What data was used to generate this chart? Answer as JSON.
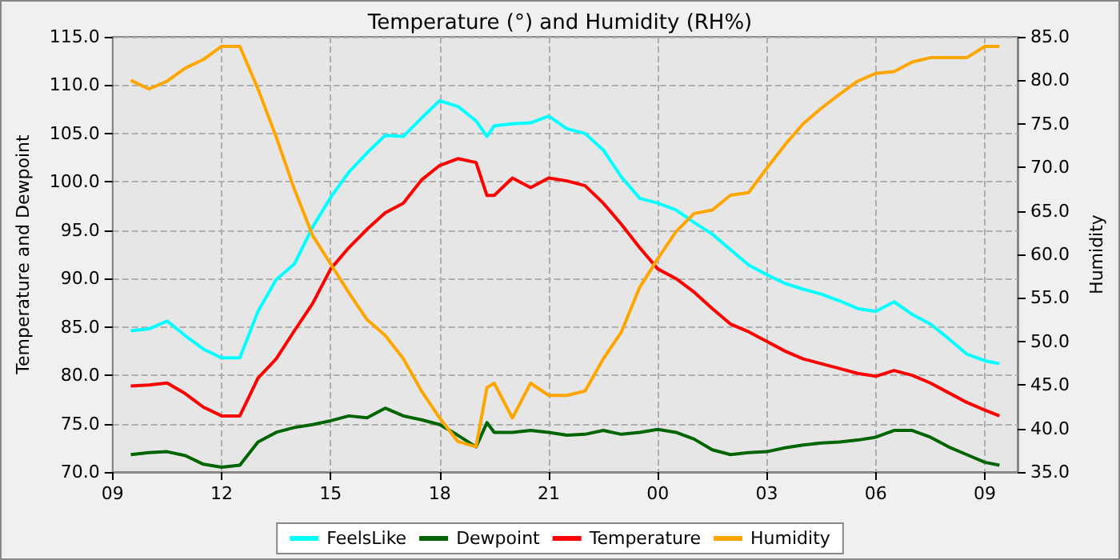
{
  "chart_data": {
    "type": "line",
    "title": "Temperature (°) and Humidity (RH%)",
    "ylabel": "Temperature and Dewpoint",
    "y2label": "Humidity",
    "xlim": [
      9,
      33.9
    ],
    "xticks": [
      {
        "value": 9,
        "label": "09"
      },
      {
        "value": 12,
        "label": "12"
      },
      {
        "value": 15,
        "label": "15"
      },
      {
        "value": 18,
        "label": "18"
      },
      {
        "value": 21,
        "label": "21"
      },
      {
        "value": 24,
        "label": "00"
      },
      {
        "value": 27,
        "label": "03"
      },
      {
        "value": 30,
        "label": "06"
      },
      {
        "value": 33,
        "label": "09"
      }
    ],
    "ylim": [
      70,
      115
    ],
    "yticks": [
      {
        "value": 70,
        "label": "70.0"
      },
      {
        "value": 75,
        "label": "75.0"
      },
      {
        "value": 80,
        "label": "80.0"
      },
      {
        "value": 85,
        "label": "85.0"
      },
      {
        "value": 90,
        "label": "90.0"
      },
      {
        "value": 95,
        "label": "95.0"
      },
      {
        "value": 100,
        "label": "100.0"
      },
      {
        "value": 105,
        "label": "105.0"
      },
      {
        "value": 110,
        "label": "110.0"
      },
      {
        "value": 115,
        "label": "115.0"
      }
    ],
    "y2lim": [
      35,
      85
    ],
    "y2ticks": [
      {
        "value": 35,
        "label": "35.0"
      },
      {
        "value": 40,
        "label": "40.0"
      },
      {
        "value": 45,
        "label": "45.0"
      },
      {
        "value": 50,
        "label": "50.0"
      },
      {
        "value": 55,
        "label": "55.0"
      },
      {
        "value": 60,
        "label": "60.0"
      },
      {
        "value": 65,
        "label": "65.0"
      },
      {
        "value": 70,
        "label": "70.0"
      },
      {
        "value": 75,
        "label": "75.0"
      },
      {
        "value": 80,
        "label": "80.0"
      },
      {
        "value": 85,
        "label": "85.0"
      }
    ],
    "x": [
      9.5,
      10,
      10.5,
      11,
      11.5,
      12,
      12.5,
      13,
      13.5,
      14,
      14.5,
      15,
      15.5,
      16,
      16.5,
      17,
      17.5,
      18,
      18.5,
      19,
      19.3,
      19.5,
      20,
      20.5,
      21,
      21.5,
      22,
      22.5,
      23,
      23.5,
      24,
      24.5,
      25,
      25.5,
      26,
      26.5,
      27,
      27.5,
      28,
      28.5,
      29,
      29.5,
      30,
      30.5,
      31,
      31.5,
      32,
      32.5,
      33,
      33.4
    ],
    "series": [
      {
        "name": "FeelsLike",
        "color": "#00ffff",
        "values": [
          84.6,
          84.8,
          85.6,
          84.1,
          82.7,
          81.8,
          81.8,
          86.6,
          89.9,
          91.5,
          95.3,
          98.4,
          101.0,
          103.0,
          104.8,
          104.7,
          106.6,
          108.4,
          107.8,
          106.3,
          104.7,
          105.8,
          106.0,
          106.1,
          106.8,
          105.5,
          105.0,
          103.3,
          100.5,
          98.3,
          97.8,
          97.1,
          95.8,
          94.6,
          93.0,
          91.4,
          90.4,
          89.5,
          88.9,
          88.4,
          87.7,
          86.9,
          86.6,
          87.6,
          86.3,
          85.3,
          83.8,
          82.2,
          81.5,
          81.2
        ]
      },
      {
        "name": "Dewpoint",
        "color": "#006400",
        "values": [
          71.8,
          72.0,
          72.1,
          71.7,
          70.8,
          70.5,
          70.7,
          73.1,
          74.1,
          74.6,
          74.9,
          75.3,
          75.8,
          75.6,
          76.6,
          75.8,
          75.4,
          74.9,
          73.8,
          72.6,
          75.1,
          74.1,
          74.1,
          74.3,
          74.1,
          73.8,
          73.9,
          74.3,
          73.9,
          74.1,
          74.4,
          74.1,
          73.4,
          72.3,
          71.8,
          72.0,
          72.1,
          72.5,
          72.8,
          73.0,
          73.1,
          73.3,
          73.6,
          74.3,
          74.3,
          73.6,
          72.6,
          71.8,
          71.0,
          70.7
        ]
      },
      {
        "name": "Temperature",
        "color": "#ff0000",
        "values": [
          78.9,
          79.0,
          79.2,
          78.1,
          76.7,
          75.8,
          75.8,
          79.7,
          81.7,
          84.6,
          87.4,
          91.0,
          93.2,
          95.1,
          96.8,
          97.8,
          100.2,
          101.7,
          102.4,
          102.0,
          98.6,
          98.6,
          100.4,
          99.4,
          100.4,
          100.1,
          99.6,
          97.8,
          95.6,
          93.2,
          91.0,
          90.0,
          88.6,
          86.9,
          85.3,
          84.5,
          83.5,
          82.5,
          81.7,
          81.2,
          80.7,
          80.2,
          79.9,
          80.5,
          80.0,
          79.2,
          78.2,
          77.2,
          76.4,
          75.8
        ]
      },
      {
        "name": "Humidity",
        "color": "#ffa500",
        "axis": "y2",
        "values": [
          80.0,
          79.0,
          79.9,
          81.4,
          82.4,
          83.9,
          83.9,
          79.0,
          73.5,
          67.5,
          62.2,
          58.9,
          55.6,
          52.5,
          50.7,
          48.0,
          44.3,
          41.2,
          38.5,
          37.9,
          44.7,
          45.2,
          41.2,
          45.2,
          43.8,
          43.8,
          44.3,
          48.0,
          51.1,
          56.2,
          59.5,
          62.6,
          64.7,
          65.1,
          66.8,
          67.1,
          69.9,
          72.6,
          75.0,
          76.8,
          78.4,
          79.9,
          80.8,
          81.0,
          82.1,
          82.6,
          82.6,
          82.6,
          83.9,
          83.9
        ]
      }
    ],
    "grid": true,
    "legend": "bottom",
    "marker": "none",
    "line_style": "solid"
  }
}
